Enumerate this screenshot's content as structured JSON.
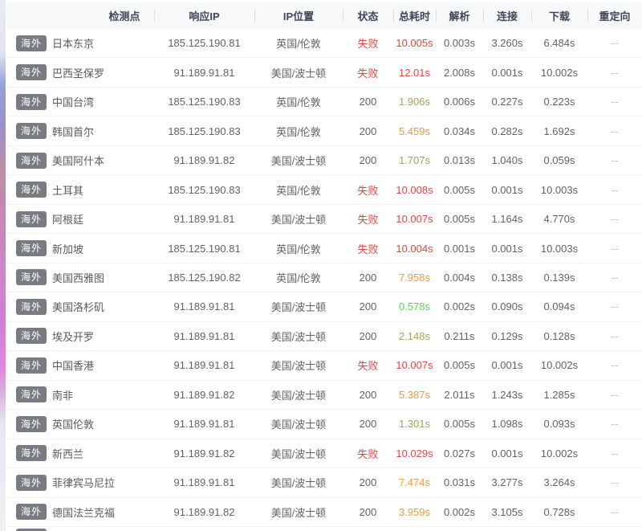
{
  "table": {
    "columns": [
      "检测点",
      "响应IP",
      "IP位置",
      "状态",
      "总耗时",
      "解析",
      "连接",
      "下载",
      "重定向"
    ],
    "next_row_badge": "海外",
    "rows": [
      {
        "badge": "海外",
        "node": "日本东京",
        "ip": "185.125.190.81",
        "location": "英国/伦敦",
        "status": "失败",
        "status_type": "fail",
        "total": "10.005s",
        "total_color": "red",
        "dns": "0.003s",
        "connect": "3.260s",
        "download": "6.484s",
        "redirect": "--"
      },
      {
        "badge": "海外",
        "node": "巴西圣保罗",
        "ip": "91.189.91.81",
        "location": "美国/波士顿",
        "status": "失败",
        "status_type": "fail",
        "total": "12.01s",
        "total_color": "red",
        "dns": "2.008s",
        "connect": "0.001s",
        "download": "10.002s",
        "redirect": "--"
      },
      {
        "badge": "海外",
        "node": "中国台湾",
        "ip": "185.125.190.83",
        "location": "英国/伦敦",
        "status": "200",
        "status_type": "ok",
        "total": "1.906s",
        "total_color": "olive",
        "dns": "0.006s",
        "connect": "0.227s",
        "download": "0.223s",
        "redirect": "--"
      },
      {
        "badge": "海外",
        "node": "韩国首尔",
        "ip": "185.125.190.83",
        "location": "英国/伦敦",
        "status": "200",
        "status_type": "ok",
        "total": "5.459s",
        "total_color": "orange",
        "dns": "0.034s",
        "connect": "0.282s",
        "download": "1.692s",
        "redirect": "--"
      },
      {
        "badge": "海外",
        "node": "美国阿什本",
        "ip": "91.189.91.82",
        "location": "美国/波士顿",
        "status": "200",
        "status_type": "ok",
        "total": "1.707s",
        "total_color": "olive",
        "dns": "0.013s",
        "connect": "1.040s",
        "download": "0.059s",
        "redirect": "--"
      },
      {
        "badge": "海外",
        "node": "土耳其",
        "ip": "185.125.190.83",
        "location": "英国/伦敦",
        "status": "失败",
        "status_type": "fail",
        "total": "10.008s",
        "total_color": "red",
        "dns": "0.005s",
        "connect": "0.001s",
        "download": "10.003s",
        "redirect": "--"
      },
      {
        "badge": "海外",
        "node": "阿根廷",
        "ip": "91.189.91.81",
        "location": "美国/波士顿",
        "status": "失败",
        "status_type": "fail",
        "total": "10.007s",
        "total_color": "red",
        "dns": "0.005s",
        "connect": "1.164s",
        "download": "4.770s",
        "redirect": "--"
      },
      {
        "badge": "海外",
        "node": "新加坡",
        "ip": "185.125.190.81",
        "location": "英国/伦敦",
        "status": "失败",
        "status_type": "fail",
        "total": "10.004s",
        "total_color": "red",
        "dns": "0.001s",
        "connect": "0.001s",
        "download": "10.003s",
        "redirect": "--"
      },
      {
        "badge": "海外",
        "node": "美国西雅图",
        "ip": "185.125.190.82",
        "location": "英国/伦敦",
        "status": "200",
        "status_type": "ok",
        "total": "7.958s",
        "total_color": "orange",
        "dns": "0.004s",
        "connect": "0.138s",
        "download": "0.139s",
        "redirect": "--"
      },
      {
        "badge": "海外",
        "node": "美国洛杉矶",
        "ip": "91.189.91.81",
        "location": "美国/波士顿",
        "status": "200",
        "status_type": "ok",
        "total": "0.578s",
        "total_color": "green",
        "dns": "0.002s",
        "connect": "0.090s",
        "download": "0.094s",
        "redirect": "--"
      },
      {
        "badge": "海外",
        "node": "埃及开罗",
        "ip": "91.189.91.81",
        "location": "美国/波士顿",
        "status": "200",
        "status_type": "ok",
        "total": "2.148s",
        "total_color": "olive",
        "dns": "0.211s",
        "connect": "0.129s",
        "download": "0.128s",
        "redirect": "--"
      },
      {
        "badge": "海外",
        "node": "中国香港",
        "ip": "91.189.91.81",
        "location": "美国/波士顿",
        "status": "失败",
        "status_type": "fail",
        "total": "10.007s",
        "total_color": "red",
        "dns": "0.005s",
        "connect": "0.001s",
        "download": "10.002s",
        "redirect": "--"
      },
      {
        "badge": "海外",
        "node": "南非",
        "ip": "91.189.91.82",
        "location": "美国/波士顿",
        "status": "200",
        "status_type": "ok",
        "total": "5.387s",
        "total_color": "orange",
        "dns": "2.011s",
        "connect": "1.243s",
        "download": "1.285s",
        "redirect": "--"
      },
      {
        "badge": "海外",
        "node": "英国伦敦",
        "ip": "91.189.91.81",
        "location": "美国/波士顿",
        "status": "200",
        "status_type": "ok",
        "total": "1.301s",
        "total_color": "olive",
        "dns": "0.005s",
        "connect": "1.098s",
        "download": "0.093s",
        "redirect": "--"
      },
      {
        "badge": "海外",
        "node": "新西兰",
        "ip": "91.189.91.82",
        "location": "美国/波士顿",
        "status": "失败",
        "status_type": "fail",
        "total": "10.029s",
        "total_color": "red",
        "dns": "0.027s",
        "connect": "0.001s",
        "download": "10.002s",
        "redirect": "--"
      },
      {
        "badge": "海外",
        "node": "菲律宾马尼拉",
        "ip": "91.189.91.81",
        "location": "美国/波士顿",
        "status": "200",
        "status_type": "ok",
        "total": "7.474s",
        "total_color": "orange",
        "dns": "0.031s",
        "connect": "3.277s",
        "download": "3.264s",
        "redirect": "--"
      },
      {
        "badge": "海外",
        "node": "德国法兰克福",
        "ip": "91.189.91.82",
        "location": "美国/波士顿",
        "status": "200",
        "status_type": "ok",
        "total": "3.959s",
        "total_color": "orange",
        "dns": "0.002s",
        "connect": "3.105s",
        "download": "0.728s",
        "redirect": "--"
      }
    ]
  },
  "colors": {
    "fail": "#e84343",
    "ok": "#5f6368",
    "red": "#e84343",
    "orange": "#ee9a3d",
    "olive": "#a9a05b",
    "green": "#5bd35b",
    "badge_bg": "#787c82"
  }
}
